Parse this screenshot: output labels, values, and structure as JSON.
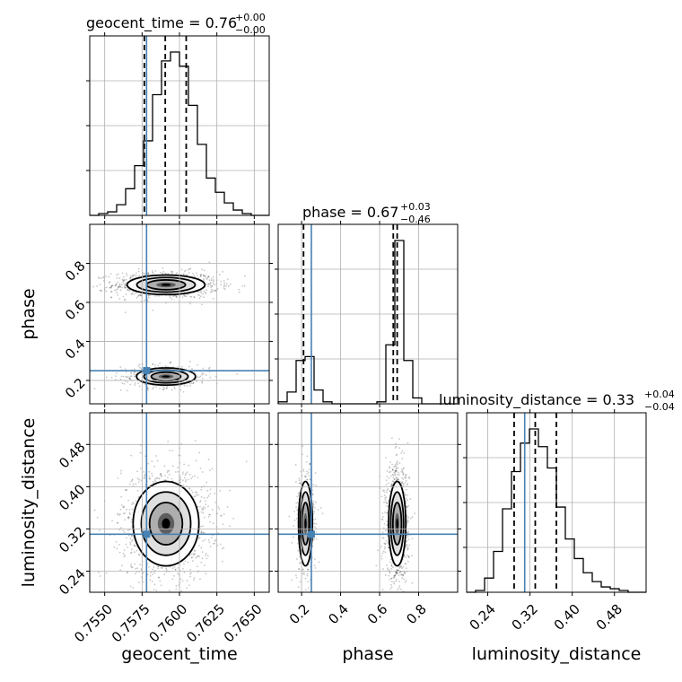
{
  "chart_data": {
    "type": "corner",
    "truth_color": "#4682b4",
    "parameters": [
      {
        "key": "geocent_time",
        "axis_label": "geocent_time",
        "title_prefix": "geocent_time = ",
        "title_value": "0.76",
        "title_plus": "+0.00",
        "title_minus": "−0.00",
        "range": [
          0.754,
          0.766
        ],
        "ticks": [
          0.755,
          0.7575,
          0.76,
          0.7625,
          0.765
        ],
        "tick_labels": [
          "0.7550",
          "0.7575",
          "0.7600",
          "0.7625",
          "0.7650"
        ],
        "truth": 0.7578,
        "quantiles": [
          0.75765,
          0.75905,
          0.76045
        ]
      },
      {
        "key": "phase",
        "axis_label": "phase",
        "title_prefix": "phase = ",
        "title_value": "0.67",
        "title_plus": "+0.03",
        "title_minus": "−0.46",
        "range": [
          0.08,
          1.0
        ],
        "ticks": [
          0.2,
          0.4,
          0.6,
          0.8
        ],
        "tick_labels": [
          "0.2",
          "0.4",
          "0.6",
          "0.8"
        ],
        "truth": 0.25,
        "quantiles": [
          0.21,
          0.67,
          0.69
        ]
      },
      {
        "key": "luminosity_distance",
        "axis_label": "luminosity_distance",
        "title_prefix": "luminosity_distance = ",
        "title_value": "0.33",
        "title_plus": "+0.04",
        "title_minus": "−0.04",
        "range": [
          0.2,
          0.54
        ],
        "ticks": [
          0.24,
          0.32,
          0.4,
          0.48
        ],
        "tick_labels": [
          "0.24",
          "0.32",
          "0.40",
          "0.48"
        ],
        "truth": 0.31,
        "quantiles": [
          0.29,
          0.33,
          0.37
        ]
      }
    ],
    "histograms": {
      "geocent_time": {
        "edges": [
          0.754,
          0.7546,
          0.7552,
          0.7558,
          0.7564,
          0.757,
          0.7576,
          0.7582,
          0.7588,
          0.7594,
          0.76,
          0.7606,
          0.7612,
          0.7618,
          0.7624,
          0.763,
          0.7636,
          0.7642,
          0.7648,
          0.7654,
          0.766
        ],
        "counts": [
          0,
          1,
          2,
          6,
          15,
          28,
          42,
          68,
          87,
          92,
          84,
          62,
          40,
          21,
          13,
          7,
          3,
          1,
          0,
          0
        ]
      },
      "phase": {
        "edges": [
          0.08,
          0.126,
          0.172,
          0.218,
          0.264,
          0.31,
          0.356,
          0.402,
          0.448,
          0.494,
          0.54,
          0.586,
          0.632,
          0.678,
          0.724,
          0.77,
          0.816,
          0.862,
          0.908,
          0.954,
          1.0
        ],
        "counts": [
          1,
          6,
          22,
          24,
          7,
          1,
          0,
          0,
          0,
          0,
          0,
          1,
          30,
          83,
          22,
          3,
          0,
          0,
          0,
          0
        ]
      },
      "luminosity_distance": {
        "edges": [
          0.2,
          0.217,
          0.234,
          0.251,
          0.268,
          0.285,
          0.302,
          0.319,
          0.336,
          0.353,
          0.37,
          0.387,
          0.404,
          0.421,
          0.438,
          0.455,
          0.472,
          0.489,
          0.506,
          0.523,
          0.54
        ],
        "counts": [
          0,
          1,
          8,
          23,
          47,
          68,
          84,
          92,
          82,
          70,
          48,
          30,
          19,
          11,
          6,
          3,
          2,
          1,
          0,
          0
        ]
      }
    },
    "joint_modes": [
      {
        "x": "geocent_time",
        "y": "phase",
        "modes": [
          {
            "cx": 0.7591,
            "cy": 0.69,
            "sx": 0.0013,
            "sy": 0.025,
            "w": 0.72
          },
          {
            "cx": 0.7591,
            "cy": 0.22,
            "sx": 0.0011,
            "sy": 0.022,
            "w": 0.28
          }
        ]
      },
      {
        "x": "geocent_time",
        "y": "luminosity_distance",
        "modes": [
          {
            "cx": 0.7591,
            "cy": 0.33,
            "sx": 0.0011,
            "sy": 0.04,
            "w": 1.0
          }
        ]
      },
      {
        "x": "phase",
        "y": "luminosity_distance",
        "modes": [
          {
            "cx": 0.69,
            "cy": 0.33,
            "sx": 0.022,
            "sy": 0.04,
            "w": 0.72
          },
          {
            "cx": 0.22,
            "cy": 0.33,
            "sx": 0.02,
            "sy": 0.04,
            "w": 0.28
          }
        ]
      }
    ],
    "grid": true
  }
}
